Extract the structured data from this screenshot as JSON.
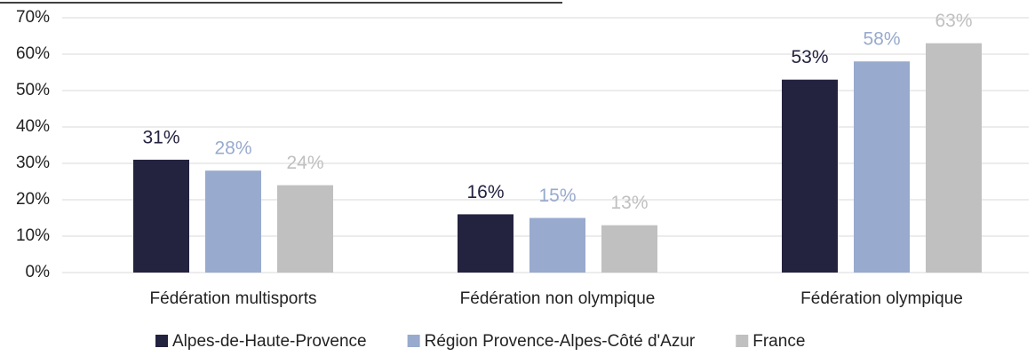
{
  "chart_data": {
    "type": "bar",
    "categories": [
      "Fédération multisports",
      "Fédération non olympique",
      "Fédération olympique"
    ],
    "series": [
      {
        "name": "Alpes-de-Haute-Provence",
        "color": "#23223f",
        "values": [
          31,
          16,
          53
        ],
        "value_labels": [
          "31%",
          "16%",
          "53%"
        ]
      },
      {
        "name": "Région Provence-Alpes-Côté d'Azur",
        "color": "#98aacd",
        "values": [
          28,
          15,
          58
        ],
        "value_labels": [
          "28%",
          "15%",
          "58%"
        ]
      },
      {
        "name": "France",
        "color": "#c0c0c0",
        "values": [
          24,
          13,
          63
        ],
        "value_labels": [
          "24%",
          "13%",
          "63%"
        ]
      }
    ],
    "ylim": [
      0,
      70
    ],
    "yticks": [
      {
        "value": 0,
        "label": "0%"
      },
      {
        "value": 10,
        "label": "10%"
      },
      {
        "value": 20,
        "label": "20%"
      },
      {
        "value": 30,
        "label": "30%"
      },
      {
        "value": 40,
        "label": "40%"
      },
      {
        "value": 50,
        "label": "50%"
      },
      {
        "value": 60,
        "label": "60%"
      },
      {
        "value": 70,
        "label": "70%"
      }
    ],
    "grid": true,
    "legend": "bottom"
  }
}
